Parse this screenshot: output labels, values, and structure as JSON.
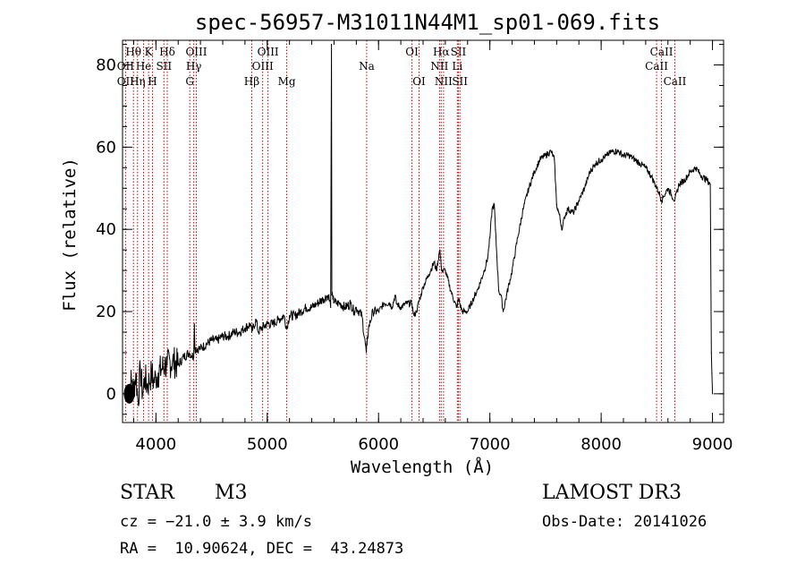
{
  "chart_data": {
    "type": "line",
    "title": "spec-56957-M31011N44M1_sp01-069.fits",
    "xlabel": "Wavelength (Å)",
    "ylabel": "Flux (relative)",
    "xlim": [
      3700,
      9100
    ],
    "ylim": [
      -7,
      86
    ],
    "xticks": [
      4000,
      5000,
      6000,
      7000,
      8000,
      9000
    ],
    "yticks": [
      0,
      20,
      40,
      60,
      80
    ],
    "x_minor_step": 200,
    "y_minor_step": 5,
    "series": [
      {
        "name": "flux",
        "x": [
          3740,
          3760,
          3780,
          3800,
          3820,
          3840,
          3860,
          3880,
          3900,
          3920,
          3940,
          3960,
          3980,
          4000,
          4020,
          4050,
          4080,
          4100,
          4150,
          4200,
          4250,
          4300,
          4340,
          4345,
          4350,
          4400,
          4450,
          4500,
          4550,
          4600,
          4650,
          4700,
          4750,
          4800,
          4850,
          4861,
          4900,
          4920,
          4950,
          5000,
          5050,
          5100,
          5150,
          5175,
          5200,
          5250,
          5300,
          5350,
          5400,
          5450,
          5500,
          5550,
          5570,
          5577,
          5580,
          5590,
          5620,
          5650,
          5700,
          5750,
          5780,
          5800,
          5850,
          5890,
          5896,
          5910,
          5950,
          6000,
          6050,
          6100,
          6120,
          6150,
          6160,
          6200,
          6250,
          6300,
          6310,
          6320,
          6340,
          6400,
          6450,
          6500,
          6520,
          6550,
          6563,
          6570,
          6600,
          6650,
          6700,
          6720,
          6750,
          6800,
          6850,
          6900,
          6950,
          6980,
          7000,
          7020,
          7040,
          7050,
          7080,
          7100,
          7120,
          7150,
          7200,
          7250,
          7300,
          7350,
          7400,
          7450,
          7500,
          7550,
          7580,
          7600,
          7620,
          7650,
          7670,
          7700,
          7750,
          7800,
          7850,
          7900,
          7950,
          8000,
          8050,
          8100,
          8150,
          8200,
          8250,
          8300,
          8350,
          8400,
          8450,
          8500,
          8520,
          8542,
          8560,
          8600,
          8662,
          8700,
          8750,
          8800,
          8850,
          8900,
          8950,
          8980,
          8990,
          8995,
          9000
        ],
        "values": [
          0,
          2,
          3,
          1,
          5,
          -2,
          6,
          0,
          4,
          2,
          3,
          5,
          3,
          4,
          5,
          6,
          7,
          7,
          8,
          7,
          9,
          10,
          9,
          17,
          11,
          11,
          12,
          13,
          13,
          14,
          14,
          15,
          15,
          16,
          17,
          15,
          18,
          15,
          16,
          17,
          17,
          18,
          19,
          16,
          19,
          19,
          20,
          21,
          21,
          22,
          23,
          24,
          21,
          85,
          24,
          23,
          22,
          22,
          21,
          22,
          20,
          21,
          19,
          10,
          12,
          16,
          20,
          20,
          22,
          22,
          21,
          24,
          22,
          21,
          22,
          22,
          20,
          19,
          20,
          26,
          29,
          32,
          30,
          35,
          31,
          30,
          30,
          25,
          21,
          23,
          20,
          20,
          23,
          26,
          30,
          33,
          38,
          45,
          46,
          40,
          25,
          24,
          20,
          24,
          30,
          38,
          45,
          50,
          54,
          57,
          58,
          59,
          57,
          46,
          44,
          40,
          43,
          45,
          44,
          47,
          50,
          54,
          56,
          57,
          58,
          59,
          59,
          58,
          58,
          57,
          56,
          55,
          53,
          50,
          49,
          47,
          48,
          50,
          47,
          51,
          52,
          54,
          55,
          53,
          52,
          51,
          10,
          5,
          0
        ]
      }
    ],
    "line_markers": [
      {
        "label": "Hθ",
        "wavelength": 3798,
        "row": 1
      },
      {
        "label": "OII",
        "wavelength": 3727,
        "row": 2
      },
      {
        "label": "OII",
        "wavelength": 3727,
        "row": 3
      },
      {
        "label": "K",
        "wavelength": 3934,
        "row": 1
      },
      {
        "label": "He",
        "wavelength": 3889,
        "row": 2
      },
      {
        "label": "Hη",
        "wavelength": 3835,
        "row": 3
      },
      {
        "label": "SII",
        "wavelength": 4072,
        "row": 2
      },
      {
        "label": "H",
        "wavelength": 3969,
        "row": 3
      },
      {
        "label": "Hδ",
        "wavelength": 4102,
        "row": 1
      },
      {
        "label": "OIII",
        "wavelength": 4363,
        "row": 1
      },
      {
        "label": "Hγ",
        "wavelength": 4340,
        "row": 2
      },
      {
        "label": "G",
        "wavelength": 4304,
        "row": 3
      },
      {
        "label": "Hβ",
        "wavelength": 4861,
        "row": 3
      },
      {
        "label": "OIII",
        "wavelength": 4959,
        "row": 2
      },
      {
        "label": "OIII",
        "wavelength": 5007,
        "row": 1
      },
      {
        "label": "Mg",
        "wavelength": 5175,
        "row": 3
      },
      {
        "label": "Na",
        "wavelength": 5893,
        "row": 2
      },
      {
        "label": "OI",
        "wavelength": 6300,
        "row": 1
      },
      {
        "label": "OI",
        "wavelength": 6364,
        "row": 3
      },
      {
        "label": "NII",
        "wavelength": 6548,
        "row": 2
      },
      {
        "label": "Hα",
        "wavelength": 6563,
        "row": 1
      },
      {
        "label": "NII",
        "wavelength": 6584,
        "row": 3
      },
      {
        "label": "SII",
        "wavelength": 6717,
        "row": 1
      },
      {
        "label": "Li",
        "wavelength": 6708,
        "row": 2
      },
      {
        "label": "SII",
        "wavelength": 6731,
        "row": 3
      },
      {
        "label": "CaII",
        "wavelength": 8542,
        "row": 1
      },
      {
        "label": "CaII",
        "wavelength": 8498,
        "row": 2
      },
      {
        "label": "CaII",
        "wavelength": 8662,
        "row": 3
      }
    ],
    "marker_color": "#cc0000"
  },
  "info": {
    "object_class": "STAR",
    "subclass": "M3",
    "survey": "LAMOST DR3",
    "redshift": "cz = −21.0 ± 3.9 km/s",
    "obs_date": "Obs-Date: 20141026",
    "coords": "RA =  10.90624, DEC =  43.24873"
  }
}
